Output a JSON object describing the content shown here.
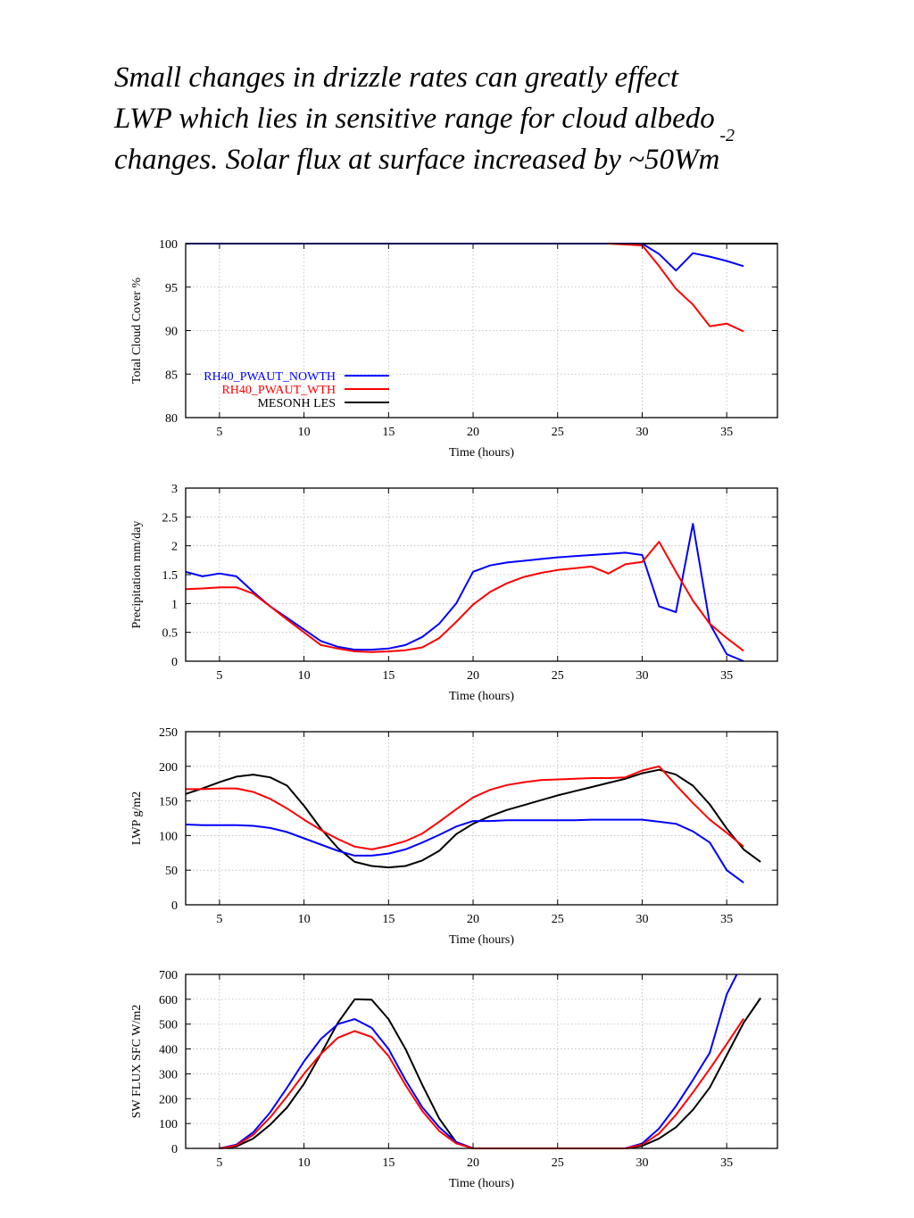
{
  "caption": {
    "line1": "Small changes in drizzle rates can greatly effect",
    "line2": "LWP which lies in sensitive range for cloud albedo",
    "line3": "changes. Solar flux at surface increased by ~50Wm",
    "line3_sup": "-2"
  },
  "colors": {
    "nowth": "#0000ff",
    "wth": "#ff0000",
    "les": "#000000"
  },
  "chart_data": [
    {
      "type": "line",
      "xlabel": "Time (hours)",
      "ylabel": "Total Cloud Cover %",
      "xlim": [
        3,
        38
      ],
      "ylim": [
        80,
        100
      ],
      "xticks": [
        5,
        10,
        15,
        20,
        25,
        30,
        35
      ],
      "yticks": [
        80,
        85,
        90,
        95,
        100
      ],
      "grid": true,
      "legend_position": "lower-left",
      "series": [
        {
          "name": "RH40_PWAUT_NOWTH",
          "color": "#0000ff",
          "x": [
            3,
            28,
            29,
            30,
            31,
            32,
            33,
            34,
            35,
            36
          ],
          "y": [
            100,
            100,
            100,
            100,
            98.8,
            96.9,
            98.9,
            98.5,
            98.0,
            97.4
          ]
        },
        {
          "name": "RH40_PWAUT_WTH",
          "color": "#ff0000",
          "x": [
            28,
            29,
            30,
            31,
            32,
            33,
            34,
            35,
            36
          ],
          "y": [
            100,
            99.9,
            99.8,
            97.4,
            94.8,
            93.0,
            90.5,
            90.8,
            89.9
          ]
        },
        {
          "name": "MESONH LES",
          "color": "#000000",
          "x": [
            3,
            38
          ],
          "y": [
            100,
            100
          ]
        }
      ]
    },
    {
      "type": "line",
      "xlabel": "Time (hours)",
      "ylabel": "Precipitation mm/day",
      "xlim": [
        3,
        38
      ],
      "ylim": [
        0,
        3
      ],
      "xticks": [
        5,
        10,
        15,
        20,
        25,
        30,
        35
      ],
      "yticks": [
        0,
        0.5,
        1,
        1.5,
        2,
        2.5,
        3
      ],
      "grid": true,
      "series": [
        {
          "name": "RH40_PWAUT_NOWTH",
          "color": "#0000ff",
          "x": [
            3,
            4,
            5,
            6,
            7,
            8,
            9,
            10,
            11,
            12,
            13,
            14,
            15,
            16,
            17,
            18,
            19,
            20,
            21,
            22,
            23,
            24,
            25,
            26,
            27,
            28,
            29,
            30,
            31,
            32,
            33,
            34,
            35,
            36
          ],
          "y": [
            1.55,
            1.47,
            1.52,
            1.47,
            1.2,
            0.95,
            0.75,
            0.55,
            0.35,
            0.25,
            0.2,
            0.2,
            0.22,
            0.28,
            0.42,
            0.65,
            1.0,
            1.55,
            1.66,
            1.71,
            1.74,
            1.77,
            1.8,
            1.82,
            1.84,
            1.86,
            1.88,
            1.84,
            0.95,
            0.85,
            2.38,
            0.65,
            0.12,
            0.0
          ]
        },
        {
          "name": "RH40_PWAUT_WTH",
          "color": "#ff0000",
          "x": [
            3,
            4,
            5,
            6,
            7,
            8,
            9,
            10,
            11,
            12,
            13,
            14,
            15,
            16,
            17,
            18,
            19,
            20,
            21,
            22,
            23,
            24,
            25,
            26,
            27,
            28,
            29,
            30,
            31,
            32,
            33,
            34,
            35,
            36
          ],
          "y": [
            1.25,
            1.26,
            1.28,
            1.28,
            1.17,
            0.95,
            0.72,
            0.5,
            0.28,
            0.22,
            0.17,
            0.16,
            0.17,
            0.19,
            0.24,
            0.4,
            0.68,
            0.98,
            1.2,
            1.35,
            1.46,
            1.53,
            1.58,
            1.61,
            1.64,
            1.52,
            1.68,
            1.72,
            2.07,
            1.55,
            1.05,
            0.65,
            0.4,
            0.18
          ]
        }
      ]
    },
    {
      "type": "line",
      "xlabel": "Time (hours)",
      "ylabel": "LWP g/m2",
      "xlim": [
        3,
        38
      ],
      "ylim": [
        0,
        250
      ],
      "xticks": [
        5,
        10,
        15,
        20,
        25,
        30,
        35
      ],
      "yticks": [
        0,
        50,
        100,
        150,
        200,
        250
      ],
      "grid": true,
      "series": [
        {
          "name": "RH40_PWAUT_NOWTH",
          "color": "#0000ff",
          "x": [
            3,
            4,
            5,
            6,
            7,
            8,
            9,
            10,
            11,
            12,
            13,
            14,
            15,
            16,
            17,
            18,
            19,
            20,
            21,
            22,
            23,
            24,
            25,
            26,
            27,
            28,
            29,
            30,
            31,
            32,
            33,
            34,
            35,
            36
          ],
          "y": [
            116,
            115,
            115,
            115,
            114,
            111,
            105,
            96,
            87,
            78,
            71,
            71,
            74,
            80,
            90,
            101,
            113,
            121,
            121,
            122,
            122,
            122,
            122,
            122,
            123,
            123,
            123,
            123,
            120,
            117,
            106,
            90,
            50,
            32
          ]
        },
        {
          "name": "RH40_PWAUT_WTH",
          "color": "#ff0000",
          "x": [
            3,
            4,
            5,
            6,
            7,
            8,
            9,
            10,
            11,
            12,
            13,
            14,
            15,
            16,
            17,
            18,
            19,
            20,
            21,
            22,
            23,
            24,
            25,
            26,
            27,
            28,
            29,
            30,
            31,
            32,
            33,
            34,
            35,
            36
          ],
          "y": [
            167,
            167,
            168,
            168,
            163,
            153,
            139,
            123,
            108,
            95,
            84,
            80,
            85,
            92,
            103,
            120,
            138,
            155,
            166,
            173,
            177,
            180,
            181,
            182,
            183,
            183,
            184,
            194,
            200,
            173,
            147,
            123,
            104,
            84
          ]
        },
        {
          "name": "MESONH LES",
          "color": "#000000",
          "x": [
            3,
            4,
            5,
            6,
            7,
            8,
            9,
            10,
            11,
            12,
            13,
            14,
            15,
            16,
            17,
            18,
            19,
            20,
            21,
            22,
            23,
            24,
            25,
            26,
            27,
            28,
            29,
            30,
            31,
            32,
            33,
            34,
            35,
            36,
            37
          ],
          "y": [
            160,
            168,
            177,
            185,
            188,
            184,
            172,
            143,
            110,
            82,
            62,
            56,
            54,
            56,
            64,
            78,
            102,
            117,
            128,
            137,
            144,
            151,
            158,
            164,
            170,
            176,
            182,
            190,
            195,
            188,
            172,
            145,
            110,
            80,
            62
          ]
        }
      ]
    },
    {
      "type": "line",
      "xlabel": "Time (hours)",
      "ylabel": "SW FLUX SFC W/m2",
      "xlim": [
        3,
        38
      ],
      "ylim": [
        0,
        700
      ],
      "xticks": [
        5,
        10,
        15,
        20,
        25,
        30,
        35
      ],
      "yticks": [
        0,
        100,
        200,
        300,
        400,
        500,
        600,
        700
      ],
      "grid": true,
      "series": [
        {
          "name": "RH40_PWAUT_NOWTH",
          "color": "#0000ff",
          "x": [
            5,
            6,
            7,
            8,
            9,
            10,
            11,
            12,
            13,
            14,
            15,
            16,
            17,
            18,
            19,
            20,
            29,
            30,
            31,
            32,
            33,
            34,
            35,
            35.6
          ],
          "y": [
            0,
            15,
            65,
            145,
            245,
            350,
            440,
            500,
            520,
            485,
            400,
            275,
            165,
            85,
            25,
            0,
            0,
            20,
            80,
            170,
            275,
            385,
            620,
            700
          ]
        },
        {
          "name": "RH40_PWAUT_WTH",
          "color": "#ff0000",
          "x": [
            5,
            6,
            7,
            8,
            9,
            10,
            11,
            12,
            13,
            14,
            15,
            16,
            17,
            18,
            19,
            20,
            29,
            30,
            31,
            32,
            33,
            34,
            35,
            36
          ],
          "y": [
            0,
            12,
            55,
            125,
            210,
            300,
            380,
            445,
            472,
            448,
            372,
            255,
            150,
            70,
            20,
            0,
            0,
            15,
            60,
            135,
            225,
            320,
            420,
            522
          ]
        },
        {
          "name": "MESONH LES",
          "color": "#000000",
          "x": [
            5,
            6,
            7,
            8,
            9,
            10,
            11,
            12,
            13,
            14,
            15,
            16,
            17,
            18,
            19,
            20,
            29,
            30,
            31,
            32,
            33,
            34,
            35,
            36,
            37
          ],
          "y": [
            0,
            8,
            40,
            95,
            165,
            260,
            380,
            505,
            600,
            598,
            520,
            400,
            255,
            120,
            25,
            0,
            0,
            10,
            40,
            85,
            155,
            245,
            375,
            505,
            605
          ]
        }
      ]
    }
  ]
}
